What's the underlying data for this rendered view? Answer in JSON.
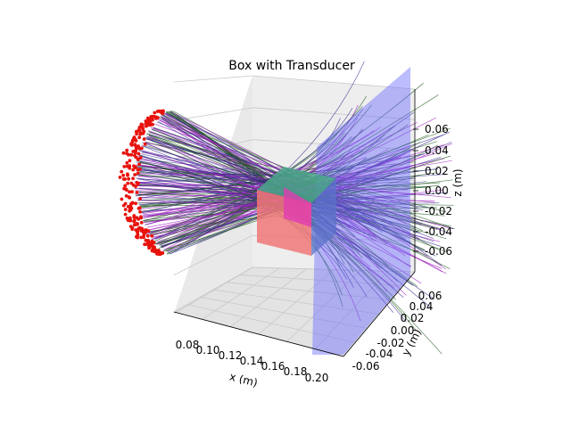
{
  "chart_data": {
    "type": "scatter",
    "projection": "3d",
    "title": "Box with Transducer",
    "xlabel": "x (m)",
    "ylabel": "y (m)",
    "zlabel": "z (m)",
    "x_ticks": [
      "0.08",
      "0.10",
      "0.12",
      "0.14",
      "0.16",
      "0.18",
      "0.20"
    ],
    "y_ticks": [
      "-0.06",
      "-0.04",
      "-0.02",
      "0.00",
      "0.02",
      "0.04",
      "0.06"
    ],
    "z_ticks": [
      "-0.06",
      "-0.04",
      "-0.02",
      "0.00",
      "0.02",
      "0.04",
      "0.06"
    ],
    "xlim": [
      0.07,
      0.2
    ],
    "ylim": [
      -0.07,
      0.07
    ],
    "zlim": [
      -0.07,
      0.07
    ],
    "grid": true,
    "elements": {
      "transducer_points_color": "#e8120c",
      "ray_colors": [
        "#1f5a1f",
        "#a020c0",
        "#3a2b8f"
      ],
      "box_face_colors": [
        "#4aa889",
        "#5a72c8",
        "#f07878",
        "#e03cb0",
        "#c86a6a"
      ],
      "receiver_plane_color": "#6a6aff"
    }
  }
}
